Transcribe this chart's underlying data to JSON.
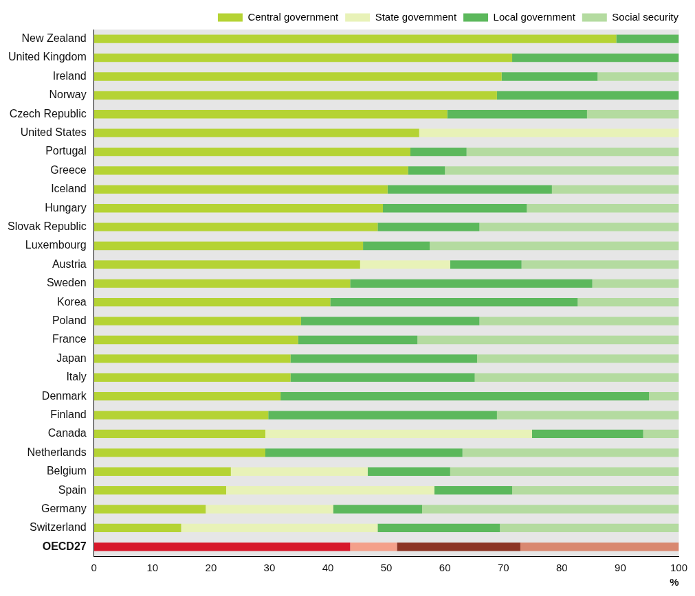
{
  "chart_data": {
    "type": "bar",
    "orientation": "horizontal",
    "stacked": true,
    "xlabel": "%",
    "legend": "top",
    "grid": false,
    "xlim": [
      0,
      100
    ],
    "xticks": [
      0,
      10,
      20,
      30,
      40,
      50,
      60,
      70,
      80,
      90,
      100
    ],
    "categories": [
      "New Zealand",
      "United Kingdom",
      "Ireland",
      "Norway",
      "Czech Republic",
      "United States",
      "Portugal",
      "Greece",
      "Iceland",
      "Hungary",
      "Slovak Republic",
      "Luxembourg",
      "Austria",
      "Sweden",
      "Korea",
      "Poland",
      "France",
      "Japan",
      "Italy",
      "Denmark",
      "Finland",
      "Canada",
      "Netherlands",
      "Belgium",
      "Spain",
      "Germany",
      "Switzerland",
      "OECD27"
    ],
    "series": [
      {
        "name": "Central government",
        "color": "#b5d334",
        "colors": [
          "#b5d334",
          "#b5d334",
          "#b5d334",
          "#b5d334",
          "#b5d334",
          "#b5d334",
          "#b5d334",
          "#b5d334",
          "#b5d334",
          "#b5d334",
          "#b5d334",
          "#b5d334",
          "#b5d334",
          "#b5d334",
          "#b5d334",
          "#b5d334",
          "#b5d334",
          "#b5d334",
          "#b5d334",
          "#b5d334",
          "#b5d334",
          "#b5d334",
          "#b5d334",
          "#b5d334",
          "#b5d334",
          "#b5d334",
          "#b5d334",
          "#d7182a"
        ],
        "values": [
          89.3,
          71.5,
          69.7,
          68.9,
          60.4,
          55.6,
          54.1,
          53.7,
          50.2,
          49.4,
          48.5,
          46.0,
          45.5,
          43.8,
          40.4,
          35.4,
          34.9,
          33.6,
          33.6,
          31.9,
          29.8,
          29.3,
          29.3,
          23.4,
          22.6,
          19.1,
          14.9,
          43.8
        ]
      },
      {
        "name": "State government",
        "color": "#e8f2b8",
        "colors": [
          "#e8f2b8",
          "#e8f2b8",
          "#e8f2b8",
          "#e8f2b8",
          "#e8f2b8",
          "#e8f2b8",
          "#e8f2b8",
          "#e8f2b8",
          "#e8f2b8",
          "#e8f2b8",
          "#e8f2b8",
          "#e8f2b8",
          "#e8f2b8",
          "#e8f2b8",
          "#e8f2b8",
          "#e8f2b8",
          "#e8f2b8",
          "#e8f2b8",
          "#e8f2b8",
          "#e8f2b8",
          "#e8f2b8",
          "#e8f2b8",
          "#e8f2b8",
          "#e8f2b8",
          "#e8f2b8",
          "#e8f2b8",
          "#e8f2b8",
          "#f4a08a"
        ],
        "values": [
          null,
          null,
          null,
          null,
          null,
          44.4,
          null,
          null,
          null,
          null,
          null,
          null,
          15.4,
          null,
          null,
          null,
          null,
          null,
          null,
          null,
          null,
          45.6,
          null,
          23.4,
          35.6,
          21.8,
          33.6,
          8.0
        ]
      },
      {
        "name": "Local government",
        "color": "#5cb85c",
        "colors": [
          "#5cb85c",
          "#5cb85c",
          "#5cb85c",
          "#5cb85c",
          "#5cb85c",
          "#5cb85c",
          "#5cb85c",
          "#5cb85c",
          "#5cb85c",
          "#5cb85c",
          "#5cb85c",
          "#5cb85c",
          "#5cb85c",
          "#5cb85c",
          "#5cb85c",
          "#5cb85c",
          "#5cb85c",
          "#5cb85c",
          "#5cb85c",
          "#5cb85c",
          "#5cb85c",
          "#5cb85c",
          "#5cb85c",
          "#5cb85c",
          "#5cb85c",
          "#5cb85c",
          "#5cb85c",
          "#8c3424"
        ],
        "values": [
          10.7,
          28.5,
          16.4,
          31.1,
          23.9,
          null,
          9.6,
          6.3,
          28.1,
          24.6,
          17.4,
          11.4,
          12.2,
          41.4,
          42.3,
          30.5,
          20.4,
          31.9,
          31.5,
          63.0,
          39.1,
          19.0,
          33.7,
          14.1,
          13.3,
          15.2,
          20.9,
          21.1
        ]
      },
      {
        "name": "Social security",
        "color": "#b4dba0",
        "colors": [
          "#b4dba0",
          "#b4dba0",
          "#b4dba0",
          "#b4dba0",
          "#b4dba0",
          "#b4dba0",
          "#b4dba0",
          "#b4dba0",
          "#b4dba0",
          "#b4dba0",
          "#b4dba0",
          "#b4dba0",
          "#b4dba0",
          "#b4dba0",
          "#b4dba0",
          "#b4dba0",
          "#b4dba0",
          "#b4dba0",
          "#b4dba0",
          "#b4dba0",
          "#b4dba0",
          "#b4dba0",
          "#b4dba0",
          "#b4dba0",
          "#b4dba0",
          "#b4dba0",
          "#b4dba0",
          "#d98870"
        ],
        "values": [
          null,
          null,
          13.9,
          null,
          15.7,
          null,
          36.3,
          40.0,
          21.7,
          26.0,
          34.1,
          42.6,
          26.9,
          14.8,
          17.3,
          34.1,
          44.7,
          34.5,
          34.9,
          5.1,
          31.1,
          6.1,
          37.0,
          39.1,
          28.5,
          43.9,
          30.6,
          27.1
        ]
      }
    ]
  }
}
